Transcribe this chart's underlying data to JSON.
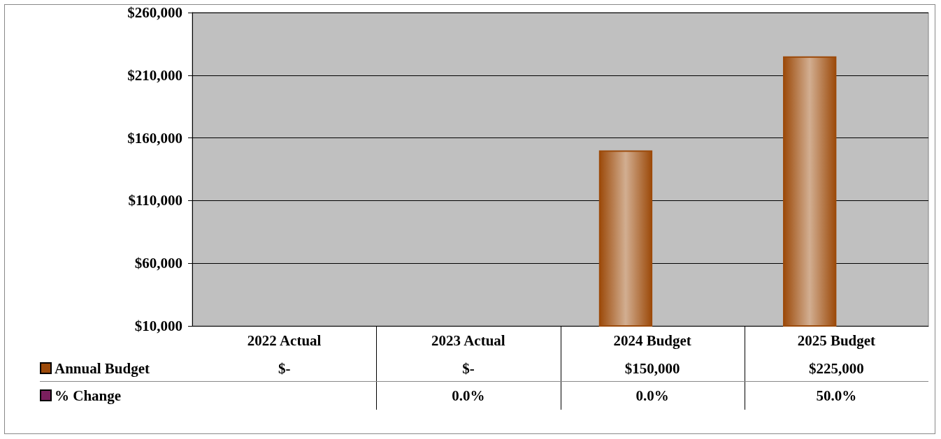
{
  "chart_data": {
    "type": "bar",
    "categories": [
      "2022 Actual",
      "2023 Actual",
      "2024 Budget",
      "2025 Budget"
    ],
    "series": [
      {
        "name": "Annual Budget",
        "color": "#9c4a0a",
        "values": [
          null,
          null,
          150000,
          225000
        ],
        "value_labels": [
          "$-",
          "$-",
          "$150,000",
          "$225,000"
        ]
      },
      {
        "name": "% Change",
        "color": "#7b1f5e",
        "values": [
          null,
          null,
          null,
          null
        ],
        "value_labels": [
          null,
          "0.0%",
          "0.0%",
          "50.0%"
        ]
      }
    ],
    "ylim": [
      10000,
      260000
    ],
    "yticks": [
      {
        "value": 10000,
        "label": "$10,000"
      },
      {
        "value": 60000,
        "label": "$60,000"
      },
      {
        "value": 110000,
        "label": "$110,000"
      },
      {
        "value": 160000,
        "label": "$160,000"
      },
      {
        "value": 210000,
        "label": "$210,000"
      },
      {
        "value": 260000,
        "label": "$260,000"
      }
    ],
    "grid": "y",
    "legend": "bottom"
  }
}
